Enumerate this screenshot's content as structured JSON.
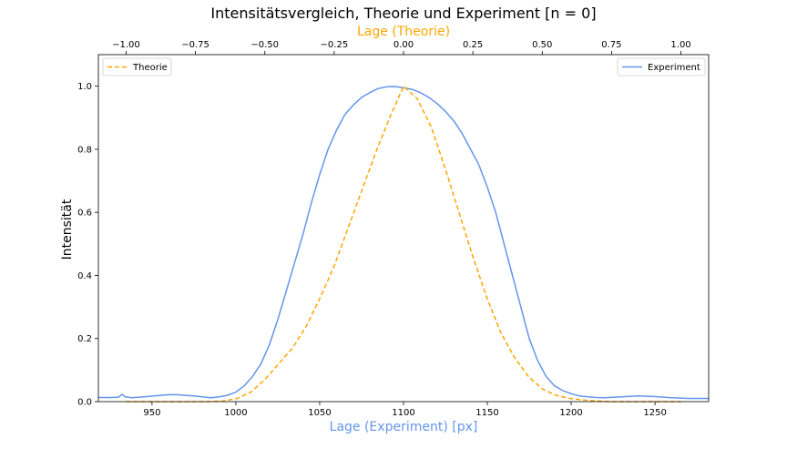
{
  "chart_data": {
    "type": "line",
    "title": "Intensitätsvergleich, Theorie und Experiment [n = 0]",
    "xlabel": "Lage (Experiment) [px]",
    "ylabel": "Intensität",
    "x2label": "Lage (Theorie)",
    "xlim": [
      918,
      1282
    ],
    "ylim": [
      0,
      1.1
    ],
    "x2lim": [
      -1.1,
      1.1
    ],
    "xticks": [
      950,
      1000,
      1050,
      1100,
      1150,
      1200,
      1250
    ],
    "yticks": [
      0.0,
      0.2,
      0.4,
      0.6,
      0.8,
      1.0
    ],
    "x2ticks": [
      -1.0,
      -0.75,
      -0.5,
      -0.25,
      0.0,
      0.25,
      0.5,
      0.75,
      1.0
    ],
    "x2tick_labels": [
      "−1.00",
      "−0.75",
      "−0.50",
      "−0.25",
      "0.00",
      "0.25",
      "0.50",
      "0.75",
      "1.00"
    ],
    "grid": false,
    "colors": {
      "experiment": "#6495ed",
      "theory": "#ffa500",
      "x2label": "#ffa500",
      "xlabel": "#6495ed"
    },
    "series": [
      {
        "name": "Experiment",
        "axis": "bottom",
        "style": "solid",
        "legend": "top-right",
        "x": [
          918,
          925,
          930,
          932,
          934,
          938,
          945,
          955,
          960,
          965,
          970,
          975,
          980,
          985,
          990,
          995,
          1000,
          1005,
          1010,
          1015,
          1020,
          1025,
          1030,
          1035,
          1040,
          1045,
          1050,
          1055,
          1060,
          1065,
          1070,
          1075,
          1080,
          1085,
          1090,
          1095,
          1100,
          1105,
          1110,
          1115,
          1120,
          1125,
          1130,
          1135,
          1140,
          1145,
          1150,
          1155,
          1160,
          1165,
          1170,
          1175,
          1180,
          1185,
          1190,
          1195,
          1200,
          1205,
          1210,
          1215,
          1220,
          1230,
          1240,
          1250,
          1260,
          1270,
          1282
        ],
        "y": [
          0.013,
          0.013,
          0.014,
          0.023,
          0.015,
          0.012,
          0.015,
          0.02,
          0.022,
          0.022,
          0.02,
          0.018,
          0.015,
          0.012,
          0.015,
          0.02,
          0.03,
          0.05,
          0.08,
          0.12,
          0.18,
          0.26,
          0.35,
          0.44,
          0.53,
          0.63,
          0.72,
          0.8,
          0.86,
          0.91,
          0.94,
          0.965,
          0.98,
          0.993,
          0.998,
          0.999,
          0.995,
          0.99,
          0.98,
          0.965,
          0.945,
          0.92,
          0.89,
          0.85,
          0.8,
          0.75,
          0.68,
          0.6,
          0.5,
          0.4,
          0.3,
          0.2,
          0.13,
          0.08,
          0.05,
          0.035,
          0.025,
          0.018,
          0.015,
          0.013,
          0.012,
          0.015,
          0.018,
          0.016,
          0.012,
          0.01,
          0.01
        ]
      },
      {
        "name": "Theorie",
        "axis": "top",
        "style": "dashed",
        "legend": "top-left",
        "x": [
          -1.0,
          -0.95,
          -0.9,
          -0.85,
          -0.8,
          -0.75,
          -0.7,
          -0.65,
          -0.6,
          -0.55,
          -0.5,
          -0.45,
          -0.4,
          -0.35,
          -0.3,
          -0.25,
          -0.2,
          -0.15,
          -0.1,
          -0.05,
          0.0,
          0.05,
          0.1,
          0.15,
          0.2,
          0.25,
          0.3,
          0.35,
          0.4,
          0.45,
          0.5,
          0.55,
          0.6,
          0.65,
          0.7,
          0.75,
          0.8,
          0.85,
          0.9,
          0.95,
          1.0
        ],
        "y": [
          0.0,
          0.0,
          0.0,
          0.0,
          0.0,
          0.0,
          0.0,
          0.002,
          0.01,
          0.03,
          0.07,
          0.12,
          0.17,
          0.24,
          0.33,
          0.43,
          0.55,
          0.67,
          0.79,
          0.9,
          1.0,
          0.96,
          0.87,
          0.74,
          0.6,
          0.46,
          0.33,
          0.22,
          0.14,
          0.08,
          0.04,
          0.02,
          0.01,
          0.005,
          0.002,
          0.0,
          0.0,
          0.0,
          0.0,
          0.0,
          0.0
        ]
      }
    ]
  }
}
